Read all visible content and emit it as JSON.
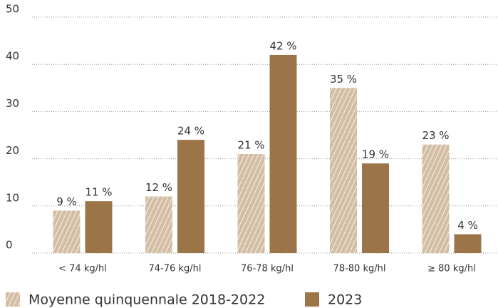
{
  "chart_data": {
    "type": "bar",
    "categories": [
      "< 74 kg/hl",
      "74-76 kg/hl",
      "76-78 kg/hl",
      "78-80 kg/hl",
      "≥ 80 kg/hl"
    ],
    "series": [
      {
        "name": "Moyenne quinquennale 2018-2022",
        "color": "#d3bda3",
        "hatch": true,
        "values": [
          9,
          12,
          21,
          35,
          23
        ],
        "value_labels": [
          "9 %",
          "12 %",
          "21 %",
          "35 %",
          "23 %"
        ]
      },
      {
        "name": "2023",
        "color": "#9b7548",
        "hatch": false,
        "values": [
          11,
          24,
          42,
          19,
          4
        ],
        "value_labels": [
          "11 %",
          "24 %",
          "42 %",
          "19 %",
          "4 %"
        ]
      }
    ],
    "ylim": [
      0,
      50
    ],
    "yticks": [
      0,
      10,
      20,
      30,
      40,
      50
    ],
    "grid": true
  }
}
